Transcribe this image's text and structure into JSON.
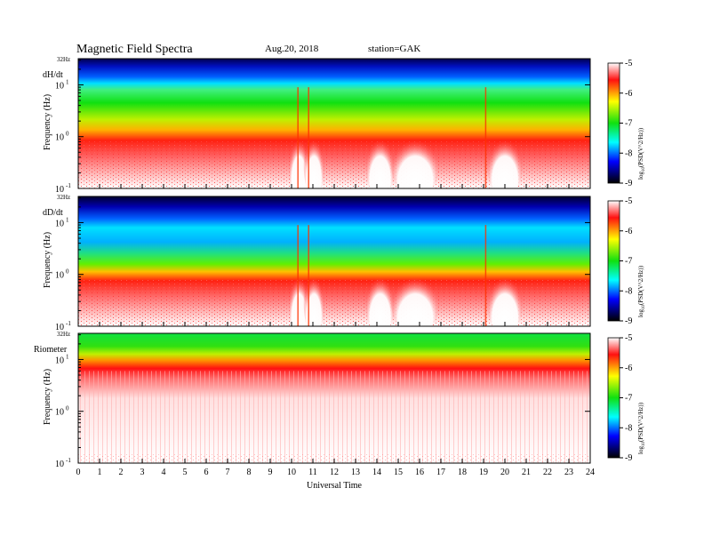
{
  "header": {
    "title": "Magnetic  Field  Spectra",
    "date": "Aug.20, 2018",
    "station": "station=GAK"
  },
  "chart_data": {
    "type": "heatmap",
    "xlabel": "Universal Time",
    "xlim": [
      0,
      24
    ],
    "x_ticks": [
      "0",
      "1",
      "2",
      "3",
      "4",
      "5",
      "6",
      "7",
      "8",
      "9",
      "10",
      "11",
      "12",
      "13",
      "14",
      "15",
      "16",
      "17",
      "18",
      "19",
      "20",
      "21",
      "22",
      "23",
      "24"
    ],
    "ylabel": "Frequency  (Hz)",
    "y_scale": "log",
    "ylim": [
      0.1,
      32
    ],
    "y_top_label": "32Hz",
    "y_ticks": [
      {
        "value": 10,
        "base": "10",
        "exp": "1"
      },
      {
        "value": 1,
        "base": "10",
        "exp": "0"
      },
      {
        "value": 0.1,
        "base": "10",
        "exp": "-1"
      }
    ],
    "colorbar": {
      "label": "log10(PSD(V^2/Hz))",
      "label_base": "log",
      "label_sub": "10",
      "label_rest": "(PSD(V^2/Hz))",
      "range": [
        -9,
        -5
      ],
      "ticks": [
        "-5",
        "-6",
        "-7",
        "-8",
        "-9"
      ],
      "stops": [
        "#ffffff",
        "#ff1010",
        "#ffff00",
        "#10e010",
        "#00ffff",
        "#0000ff",
        "#000000"
      ]
    },
    "panels": [
      {
        "name": "dH/dt",
        "bands": {
          "dark_top": [
            14,
            32
          ],
          "cyan": [
            9,
            14
          ],
          "green_yellow": [
            1.2,
            9
          ]
        },
        "quiet_periods": [
          [
            10.2,
            10.5
          ],
          [
            10.9,
            11.2
          ],
          [
            13.8,
            14.5
          ],
          [
            15.0,
            16.6
          ],
          [
            19.5,
            20.5
          ]
        ],
        "spikes": [
          10.3,
          10.8,
          19.1
        ]
      },
      {
        "name": "dD/dt",
        "bands": {
          "dark_top": [
            12,
            32
          ],
          "cyan": [
            3,
            12
          ],
          "green_yellow": [
            1.0,
            3
          ]
        },
        "quiet_periods": [
          [
            10.2,
            10.5
          ],
          [
            10.9,
            11.2
          ],
          [
            13.8,
            14.5
          ],
          [
            15.0,
            16.6
          ],
          [
            19.5,
            20.5
          ]
        ],
        "spikes": [
          10.3,
          10.8,
          19.1
        ]
      },
      {
        "name": "Riometer",
        "bands": {
          "green_top": [
            15,
            32
          ],
          "yellow_orange": [
            9,
            15
          ],
          "red_fade": [
            4,
            9
          ]
        },
        "quiet_periods": [],
        "spikes": []
      }
    ]
  }
}
